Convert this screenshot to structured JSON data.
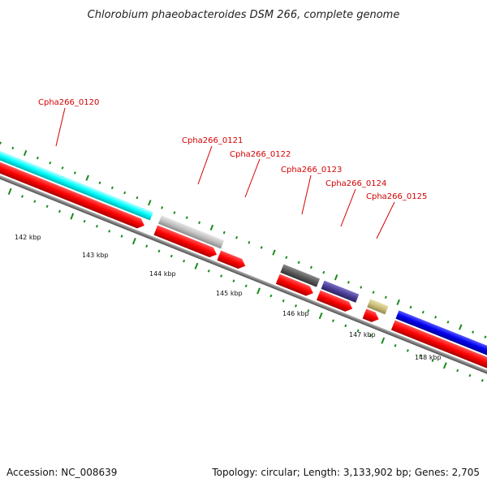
{
  "title": "Chlorobium phaeobacteroides DSM 266, complete genome",
  "footer": {
    "accession": "Accession: NC_008639",
    "summary": "Topology: circular; Length: 3,133,902 bp; Genes: 2,705"
  },
  "colors": {
    "cds": "#ff0000",
    "backbone": "#808080",
    "gc_ticks": "#1a8a1a",
    "label": "#d40000"
  },
  "gene_labels": [
    "Cpha266_0120",
    "Cpha266_0121",
    "Cpha266_0122",
    "Cpha266_0123",
    "Cpha266_0124",
    "Cpha266_0125"
  ],
  "kbp_labels": [
    "142 kbp",
    "143 kbp",
    "144 kbp",
    "145 kbp",
    "146 kbp",
    "147 kbp",
    "148 kbp"
  ],
  "feature_colors": [
    "#00ffff",
    "#c0c0c0",
    "#606060",
    "#4a3f96",
    "#c8bd7a",
    "#0000ee"
  ]
}
